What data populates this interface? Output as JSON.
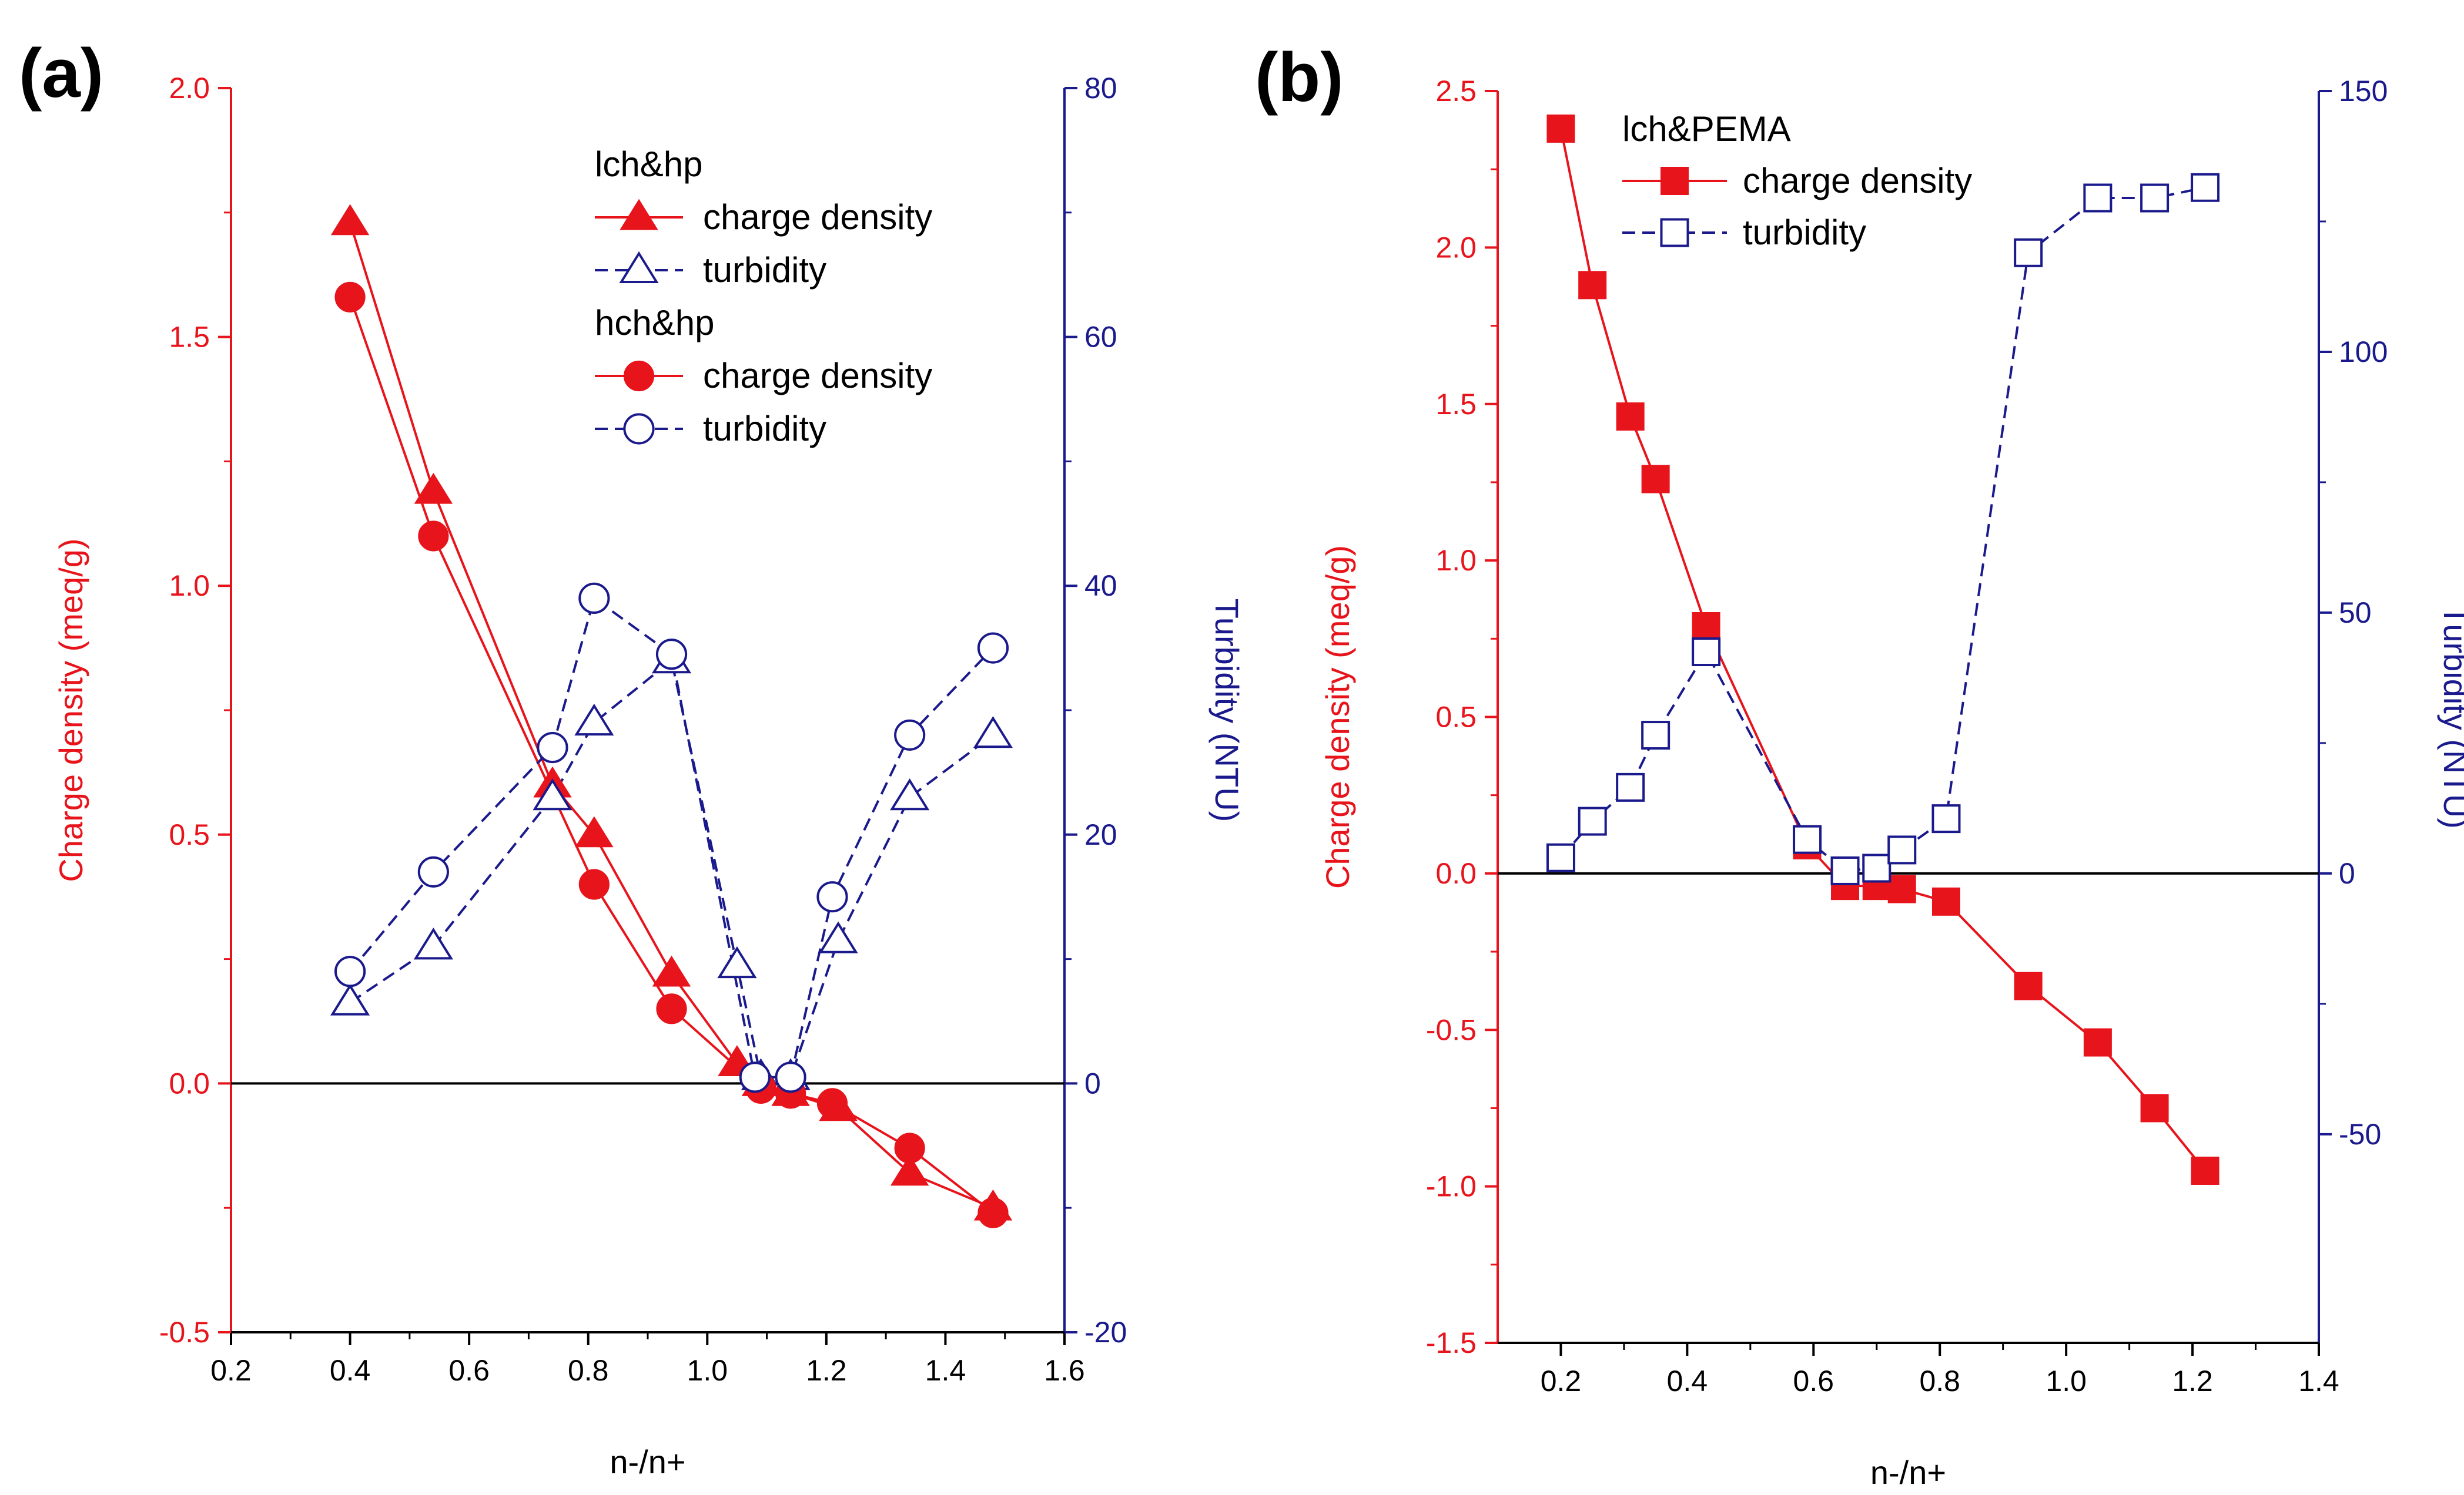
{
  "colors": {
    "left_axis": "#e8141c",
    "right_axis": "#1b1a8c",
    "charge_series": "#e8141c",
    "turbidity_series": "#1b1a8c",
    "zero_line": "#000000"
  },
  "chart_data": [
    {
      "type": "line",
      "panel_label": "(a)",
      "xlabel": "n-/n+",
      "ylabel_left": "Charge density (meq/g)",
      "ylabel_right": "Turbidity (NTU)",
      "xlim": [
        0.2,
        1.6
      ],
      "ylim_left": [
        -0.5,
        2.0
      ],
      "ylim_right": [
        -20,
        80
      ],
      "x_ticks": [
        "0.2",
        "0.4",
        "0.6",
        "0.8",
        "1.0",
        "1.2",
        "1.4",
        "1.6"
      ],
      "y_ticks_left": [
        "-0.5",
        "0.0",
        "0.5",
        "1.0",
        "1.5",
        "2.0"
      ],
      "y_ticks_right": [
        "-20",
        "0",
        "20",
        "40",
        "60",
        "80"
      ],
      "zero_line_left": 0,
      "legend": {
        "position": "top-center",
        "groups": [
          {
            "title": "lch&hp",
            "entries": [
              "charge density",
              "turbidity"
            ]
          },
          {
            "title": "hch&hp",
            "entries": [
              "charge density",
              "turbidity"
            ]
          }
        ]
      },
      "series": [
        {
          "name": "charge density",
          "group": "lch&hp",
          "axis": "left",
          "marker": "filled-triangle",
          "line": "solid",
          "x": [
            0.4,
            0.54,
            0.74,
            0.81,
            0.94,
            1.05,
            1.09,
            1.14,
            1.22,
            1.34,
            1.48
          ],
          "y": [
            1.73,
            1.19,
            0.6,
            0.5,
            0.22,
            0.04,
            0.0,
            -0.02,
            -0.05,
            -0.18,
            -0.25
          ]
        },
        {
          "name": "turbidity",
          "group": "lch&hp",
          "axis": "right",
          "marker": "open-triangle",
          "line": "dashed",
          "x": [
            0.4,
            0.54,
            0.74,
            0.81,
            0.94,
            1.05,
            1.09,
            1.14,
            1.22,
            1.34,
            1.48
          ],
          "y": [
            6.5,
            11.0,
            23.0,
            29.0,
            34.0,
            9.5,
            0.5,
            0.5,
            11.5,
            23.0,
            28.0
          ]
        },
        {
          "name": "charge density",
          "group": "hch&hp",
          "axis": "left",
          "marker": "filled-circle",
          "line": "solid",
          "x": [
            0.4,
            0.54,
            0.81,
            0.94,
            1.09,
            1.14,
            1.21,
            1.34,
            1.48
          ],
          "y": [
            1.58,
            1.1,
            0.4,
            0.15,
            -0.01,
            -0.02,
            -0.04,
            -0.13,
            -0.26
          ]
        },
        {
          "name": "turbidity",
          "group": "hch&hp",
          "axis": "right",
          "marker": "open-circle",
          "line": "dashed",
          "x": [
            0.4,
            0.54,
            0.74,
            0.81,
            0.94,
            1.08,
            1.14,
            1.21,
            1.34,
            1.48
          ],
          "y": [
            9.0,
            17.0,
            27.0,
            39.0,
            34.5,
            0.5,
            0.5,
            15.0,
            28.0,
            35.0
          ]
        }
      ]
    },
    {
      "type": "line",
      "panel_label": "(b)",
      "xlabel": "n-/n+",
      "ylabel_left": "Charge density (meq/g)",
      "ylabel_right": "Turbidity (NTU)",
      "xlim": [
        0.1,
        1.4
      ],
      "ylim_left": [
        -1.5,
        2.5
      ],
      "ylim_right": [
        -90,
        150
      ],
      "x_ticks": [
        "0.2",
        "0.4",
        "0.6",
        "0.8",
        "1.0",
        "1.2",
        "1.4"
      ],
      "y_ticks_left": [
        "-1.5",
        "-1.0",
        "-0.5",
        "0.0",
        "0.5",
        "1.0",
        "1.5",
        "2.0",
        "2.5"
      ],
      "y_ticks_right": [
        "-50",
        "0",
        "50",
        "100",
        "150"
      ],
      "zero_line_left": 0,
      "legend": {
        "position": "top-left",
        "groups": [
          {
            "title": "lch&PEMA",
            "entries": [
              "charge density",
              "turbidity"
            ]
          }
        ]
      },
      "series": [
        {
          "name": "charge density",
          "group": "lch&PEMA",
          "axis": "left",
          "marker": "filled-square",
          "line": "solid",
          "x": [
            0.2,
            0.25,
            0.31,
            0.35,
            0.43,
            0.59,
            0.65,
            0.7,
            0.74,
            0.81,
            0.94,
            1.05,
            1.14,
            1.22
          ],
          "y": [
            2.38,
            1.88,
            1.46,
            1.26,
            0.79,
            0.09,
            -0.04,
            -0.04,
            -0.05,
            -0.09,
            -0.36,
            -0.54,
            -0.75,
            -0.95
          ]
        },
        {
          "name": "turbidity",
          "group": "lch&PEMA",
          "axis": "right",
          "marker": "open-square",
          "line": "dashed",
          "x": [
            0.2,
            0.25,
            0.31,
            0.35,
            0.43,
            0.59,
            0.65,
            0.7,
            0.74,
            0.81,
            0.94,
            1.05,
            1.14,
            1.22
          ],
          "y": [
            3.0,
            10.0,
            16.5,
            26.5,
            42.5,
            6.5,
            0.5,
            1.0,
            4.5,
            10.5,
            119.0,
            129.5,
            129.5,
            131.5
          ]
        }
      ]
    }
  ]
}
